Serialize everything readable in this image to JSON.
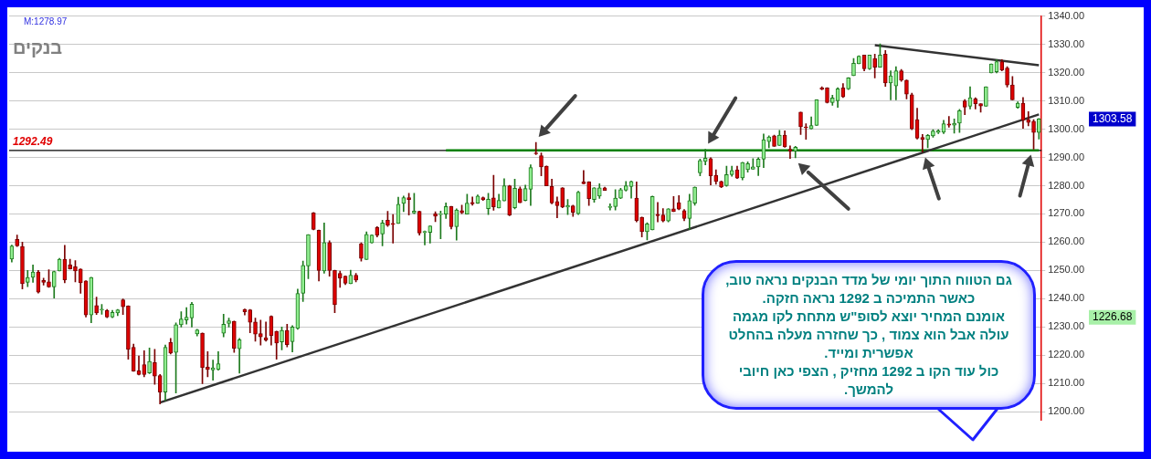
{
  "chart_data": {
    "type": "candlestick",
    "title": "בנקים",
    "categories": [
      null,
      null,
      null,
      null,
      null,
      null,
      null,
      null,
      null,
      null,
      null,
      null,
      null,
      null,
      null,
      null,
      null,
      null,
      null,
      null,
      null,
      null,
      null,
      null,
      null,
      null,
      null,
      null,
      null,
      null,
      null,
      null,
      null,
      null,
      null,
      null,
      null,
      null,
      null,
      null,
      null,
      null,
      null,
      null,
      null,
      null,
      null,
      null,
      null,
      null,
      null,
      null,
      null,
      null,
      null,
      null,
      null,
      null,
      null,
      null,
      null,
      null,
      null,
      null,
      null,
      null,
      null,
      null,
      null,
      null,
      null,
      null,
      null,
      null,
      null,
      null,
      null,
      null,
      null,
      null,
      null,
      null,
      null,
      null,
      null,
      null,
      null,
      null,
      null,
      null,
      null,
      null,
      null,
      null,
      null,
      null,
      null,
      null,
      null,
      null,
      null,
      null,
      null,
      null,
      null,
      null,
      null,
      null,
      null,
      null,
      null,
      null,
      null,
      null,
      null,
      null,
      null,
      null,
      null,
      null,
      null,
      null,
      null,
      null,
      null,
      null,
      null,
      null,
      null,
      null,
      null,
      null,
      null,
      null,
      null,
      null,
      null,
      null,
      null,
      null,
      null,
      null,
      null,
      null,
      null,
      null,
      null,
      null,
      null,
      null,
      null,
      null,
      null,
      null,
      null,
      null,
      null,
      null,
      null,
      null,
      null,
      null,
      null,
      null,
      null,
      null,
      null,
      null,
      null,
      null,
      null,
      null,
      null,
      null,
      null,
      null,
      null,
      null,
      null,
      null,
      null,
      null,
      null,
      null,
      null,
      null,
      null,
      null,
      null,
      null,
      null,
      null,
      null,
      null,
      null
    ],
    "ohlc": [
      [
        1254,
        1259,
        1253,
        1258.7
      ],
      [
        1261,
        1262.5,
        1258.5,
        1258.7
      ],
      [
        1258.5,
        1260,
        1243.5,
        1245.3
      ],
      [
        1245.8,
        1250,
        1244.3,
        1247.5
      ],
      [
        1247.6,
        1252,
        1245.8,
        1249.5
      ],
      [
        1249.5,
        1250,
        1242,
        1242.3
      ],
      [
        1246.5,
        1247.3,
        1244.8,
        1245.8
      ],
      [
        1246,
        1250.3,
        1244,
        1244.2
      ],
      [
        1244.2,
        1249.8,
        1240.2,
        1249.6
      ],
      [
        1249.8,
        1254.3,
        1249.8,
        1254
      ],
      [
        1254,
        1258.9,
        1245.6,
        1246.7
      ],
      [
        1252,
        1254,
        1250.5,
        1250.6
      ],
      [
        1251.3,
        1253.5,
        1246,
        1249.8
      ],
      [
        1250.5,
        1250.6,
        1241.9,
        1245.6
      ],
      [
        1246.3,
        1246.4,
        1233.5,
        1234.3
      ],
      [
        1234.3,
        1247.6,
        1231.5,
        1247.5
      ],
      [
        1237.6,
        1240.6,
        1234.4,
        1235
      ],
      [
        1236,
        1238,
        1234.5,
        1236.3
      ],
      [
        1235.8,
        1236.2,
        1233.3,
        1233.5
      ],
      [
        1233.5,
        1235.9,
        1233.3,
        1235.2
      ],
      [
        1235,
        1236.2,
        1234,
        1236.1
      ],
      [
        1239.6,
        1239.9,
        1234.4,
        1237.2
      ],
      [
        1237.4,
        1237.5,
        1218.6,
        1222.1
      ],
      [
        1222.8,
        1224,
        1214.3,
        1214.4
      ],
      [
        1214.5,
        1219.8,
        1213,
        1213.2
      ],
      [
        1216.7,
        1221.6,
        1212.4,
        1213.2
      ],
      [
        1213.8,
        1222.6,
        1213.5,
        1217.8
      ],
      [
        1217.4,
        1222.1,
        1209.7,
        1212.6
      ],
      [
        1212.8,
        1213.2,
        1202.8,
        1207
      ],
      [
        1207,
        1223.6,
        1204,
        1222.8
      ],
      [
        1224.5,
        1226,
        1220.5,
        1220.8
      ],
      [
        1221,
        1231.5,
        1206.7,
        1230.8
      ],
      [
        1230.8,
        1235.4,
        1230,
        1232.8
      ],
      [
        1232.5,
        1236.9,
        1231,
        1233.5
      ],
      [
        1233.2,
        1238.7,
        1230,
        1238.1
      ],
      [
        1227.6,
        1229.2,
        1226.8,
        1229
      ],
      [
        1227.8,
        1227.9,
        1210,
        1215.6
      ],
      [
        1215.8,
        1221.3,
        1212.4,
        1215
      ],
      [
        1214.8,
        1218.3,
        1211.2,
        1215.6
      ],
      [
        1215,
        1221.3,
        1214.7,
        1217
      ],
      [
        1227.8,
        1234.5,
        1226.5,
        1231
      ],
      [
        1231.3,
        1233.2,
        1230,
        1232.2
      ],
      [
        1232,
        1232.1,
        1221,
        1222.5
      ],
      [
        1222.3,
        1226,
        1213.7,
        1225.5
      ],
      [
        1236.2,
        1236.4,
        1234.3,
        1235.4
      ],
      [
        1236.1,
        1236.2,
        1228,
        1231.7
      ],
      [
        1231.8,
        1233.2,
        1225,
        1227.5
      ],
      [
        1227.7,
        1232.4,
        1223.6,
        1226.5
      ],
      [
        1226.2,
        1231.8,
        1225,
        1225.4
      ],
      [
        1233.8,
        1234,
        1223.6,
        1227
      ],
      [
        1228.5,
        1228.6,
        1218.6,
        1224.3
      ],
      [
        1224.7,
        1230,
        1221.9,
        1228.8
      ],
      [
        1228.8,
        1231,
        1223,
        1223.8
      ],
      [
        1224.8,
        1230.5,
        1221.2,
        1230
      ],
      [
        1229.5,
        1243.4,
        1229.2,
        1241.9
      ],
      [
        1241.9,
        1253.3,
        1239,
        1251.8
      ],
      [
        1251.6,
        1262.7,
        1247.1,
        1262.7
      ],
      [
        1270.4,
        1270.5,
        1264.4,
        1264.5
      ],
      [
        1264.2,
        1264.3,
        1246.3,
        1250
      ],
      [
        1249.8,
        1266.8,
        1249,
        1259.9
      ],
      [
        1259.9,
        1260.5,
        1248,
        1250
      ],
      [
        1250,
        1250.1,
        1235.1,
        1237.9
      ],
      [
        1249,
        1249.8,
        1244,
        1247.3
      ],
      [
        1248,
        1248.1,
        1245,
        1245.5
      ],
      [
        1245.3,
        1250.1,
        1245.3,
        1248.3
      ],
      [
        1248.3,
        1249,
        1246,
        1246.6
      ],
      [
        1259.5,
        1259.8,
        1253.3,
        1254.3
      ],
      [
        1253.9,
        1263.7,
        1253.9,
        1262.8
      ],
      [
        1259.8,
        1262.6,
        1259.7,
        1262.5
      ],
      [
        1265.2,
        1265.5,
        1261.9,
        1262.5
      ],
      [
        1262.9,
        1267.8,
        1258.7,
        1266.8
      ],
      [
        1267.8,
        1270.9,
        1265.6,
        1266
      ],
      [
        1266.5,
        1269.8,
        1259.7,
        1266.3
      ],
      [
        1266.6,
        1275.9,
        1266.6,
        1273.4
      ],
      [
        1273.7,
        1276.3,
        1270.8,
        1275.8
      ],
      [
        1275.8,
        1277.3,
        1269.6,
        1275.1
      ],
      [
        1270.3,
        1277.3,
        1270.1,
        1271
      ],
      [
        1270.9,
        1271,
        1262.5,
        1263.2
      ],
      [
        1263.5,
        1264,
        1259,
        1263.6
      ],
      [
        1263.5,
        1265.8,
        1259.7,
        1265.8
      ],
      [
        1270,
        1270.8,
        1267.3,
        1269.2
      ],
      [
        1269.8,
        1271,
        1261.2,
        1269.9
      ],
      [
        1269.9,
        1273.9,
        1268.4,
        1272.6
      ],
      [
        1272.6,
        1272.7,
        1264.7,
        1265.5
      ],
      [
        1265.5,
        1271.8,
        1260.7,
        1271.4
      ],
      [
        1271.2,
        1273.1,
        1270.1,
        1270.4
      ],
      [
        1269.9,
        1277,
        1269.9,
        1273.8
      ],
      [
        1274.1,
        1276,
        1273.1,
        1273.6
      ],
      [
        1273.8,
        1276.7,
        1273.7,
        1276.3
      ],
      [
        1275.8,
        1276,
        1274.8,
        1275
      ],
      [
        1271.9,
        1277.3,
        1269.8,
        1275.2
      ],
      [
        1275.7,
        1283.7,
        1271.3,
        1272.5
      ],
      [
        1272.1,
        1277,
        1272.1,
        1274.8
      ],
      [
        1274.6,
        1282.5,
        1274.6,
        1280
      ],
      [
        1280,
        1280.1,
        1269.4,
        1269.6
      ],
      [
        1272.2,
        1282.3,
        1271.8,
        1279.1
      ],
      [
        1278.9,
        1279.6,
        1274,
        1274
      ],
      [
        1274.8,
        1280.2,
        1274.6,
        1279
      ],
      [
        1278.7,
        1287.4,
        1273,
        1286.4
      ],
      [
        1291.5,
        1295.3,
        1291,
        1291.3
      ],
      [
        1290.6,
        1291.6,
        1283.5,
        1286.6
      ],
      [
        1286.9,
        1287,
        1279.9,
        1279.9
      ],
      [
        1279.7,
        1282.3,
        1273.6,
        1273.9
      ],
      [
        1274.4,
        1276,
        1268.6,
        1272.9
      ],
      [
        1279.2,
        1279.3,
        1272.2,
        1272.4
      ],
      [
        1272.4,
        1275.1,
        1269.8,
        1273
      ],
      [
        1272.9,
        1273.1,
        1269.1,
        1270.6
      ],
      [
        1270.1,
        1278,
        1269.8,
        1277.7
      ],
      [
        1281.3,
        1285.4,
        1280.7,
        1280.7
      ],
      [
        1281.3,
        1281.4,
        1273,
        1275.4
      ],
      [
        1275.1,
        1279.3,
        1274.1,
        1279.2
      ],
      [
        1276.3,
        1280.7,
        1275.5,
        1279.2
      ],
      [
        1279.2,
        1279.5,
        1278.3,
        1278.3
      ],
      [
        1272.3,
        1273.6,
        1271.4,
        1272.4
      ],
      [
        1272.6,
        1278.6,
        1271.4,
        1275.6
      ],
      [
        1275.6,
        1279.1,
        1275.4,
        1278.6
      ],
      [
        1278.4,
        1281.5,
        1278.1,
        1280
      ],
      [
        1279.7,
        1281.7,
        1275.6,
        1281.5
      ],
      [
        1275.6,
        1281.3,
        1267.2,
        1267.7
      ],
      [
        1268.8,
        1268.9,
        1261.9,
        1263.7
      ],
      [
        1263.7,
        1266.9,
        1260.8,
        1266.5
      ],
      [
        1264.4,
        1276.3,
        1264.4,
        1276.2
      ],
      [
        1269.9,
        1274.1,
        1267.2,
        1269.4
      ],
      [
        1269.6,
        1271.9,
        1267.2,
        1267.5
      ],
      [
        1267.5,
        1271.9,
        1267.2,
        1271.8
      ],
      [
        1271.8,
        1276.2,
        1270.8,
        1270.8
      ],
      [
        1274,
        1276.5,
        1271.5,
        1271.7
      ],
      [
        1271.2,
        1271.6,
        1267.6,
        1268.4
      ],
      [
        1268.4,
        1277,
        1264.5,
        1274.7
      ],
      [
        1273.8,
        1279.6,
        1273.1,
        1279.5
      ],
      [
        1284.5,
        1289.4,
        1283.5,
        1288.9
      ],
      [
        1288.6,
        1292.9,
        1287.4,
        1289.7
      ],
      [
        1289.6,
        1289.9,
        1280.3,
        1283.5
      ],
      [
        1283.7,
        1285.6,
        1280.5,
        1281.5
      ],
      [
        1281.5,
        1281.7,
        1279.3,
        1279.5
      ],
      [
        1280,
        1286.9,
        1279.8,
        1283.9
      ],
      [
        1283.9,
        1286.9,
        1283.3,
        1285.4
      ],
      [
        1285.6,
        1286.9,
        1282.5,
        1282.7
      ],
      [
        1282.8,
        1288.3,
        1282,
        1288.2
      ],
      [
        1285.7,
        1288.4,
        1284.8,
        1287.8
      ],
      [
        1285.8,
        1289.6,
        1285.8,
        1286.7
      ],
      [
        1286.6,
        1289.9,
        1283.6,
        1289.4
      ],
      [
        1289.4,
        1298.3,
        1286.4,
        1296.3
      ],
      [
        1295.6,
        1297.6,
        1293.4,
        1297.2
      ],
      [
        1297.6,
        1297.9,
        1293.9,
        1293.9
      ],
      [
        1294.2,
        1299.6,
        1294.2,
        1297.9
      ],
      [
        1297.9,
        1299.4,
        1293.6,
        1293.7
      ],
      [
        1292.9,
        1294.1,
        1289.6,
        1292.2
      ],
      [
        1292.2,
        1293.9,
        1289.9,
        1293.6
      ],
      [
        1306,
        1306,
        1298.1,
        1300.8
      ],
      [
        1300.8,
        1301.9,
        1296.4,
        1300.5
      ],
      [
        1300.1,
        1304.3,
        1300,
        1301.3
      ],
      [
        1301.3,
        1310.4,
        1301.3,
        1310.4
      ],
      [
        1314.6,
        1315,
        1313.9,
        1314.1
      ],
      [
        1314.6,
        1314.7,
        1309.2,
        1309.4
      ],
      [
        1309.4,
        1312,
        1308.4,
        1311
      ],
      [
        1310,
        1314.7,
        1307.7,
        1314.3
      ],
      [
        1314.6,
        1316.1,
        1311.2,
        1311.4
      ],
      [
        1314.2,
        1318.2,
        1314,
        1318.1
      ],
      [
        1318.9,
        1325,
        1318.9,
        1323.3
      ],
      [
        1323.1,
        1326,
        1323.1,
        1325.8
      ],
      [
        1326.2,
        1326.2,
        1320.6,
        1321.3
      ],
      [
        1321.3,
        1326.2,
        1321.1,
        1326.2
      ],
      [
        1325,
        1326.5,
        1318.1,
        1321.9
      ],
      [
        1321.9,
        1330.2,
        1321.9,
        1326.2
      ],
      [
        1326.5,
        1327.8,
        1315.1,
        1316.3
      ],
      [
        1316.3,
        1320.6,
        1310.4,
        1318.9
      ],
      [
        1315.3,
        1322.1,
        1310.4,
        1320.6
      ],
      [
        1320.6,
        1321.1,
        1316.9,
        1317.3
      ],
      [
        1317.3,
        1317.4,
        1310.7,
        1312.4
      ],
      [
        1312.2,
        1312.7,
        1299.8,
        1300.1
      ],
      [
        1303.4,
        1307.4,
        1296.5,
        1296.8
      ],
      [
        1297.1,
        1298.1,
        1291.9,
        1296.3
      ],
      [
        1296.3,
        1298.1,
        1293.4,
        1297.8
      ],
      [
        1297.6,
        1299.8,
        1297.1,
        1299.3
      ],
      [
        1298.8,
        1299.8,
        1298.4,
        1299.4
      ],
      [
        1298.9,
        1303.1,
        1298.4,
        1301.9
      ],
      [
        1301.8,
        1304.5,
        1300.7,
        1301.4
      ],
      [
        1301.4,
        1303.6,
        1298.6,
        1302.1
      ],
      [
        1302.1,
        1307,
        1298.8,
        1306.5
      ],
      [
        1310,
        1310.5,
        1305.1,
        1307.8
      ],
      [
        1308.1,
        1315,
        1307.1,
        1311.1
      ],
      [
        1310.7,
        1311.1,
        1307.1,
        1309
      ],
      [
        1309,
        1309,
        1306,
        1308.2
      ],
      [
        1308.1,
        1315,
        1308.1,
        1315
      ],
      [
        1319.9,
        1323.1,
        1319.9,
        1323.1
      ],
      [
        1320.3,
        1324.6,
        1319.9,
        1323.9
      ],
      [
        1323.9,
        1324.6,
        1320.6,
        1320.9
      ],
      [
        1321.6,
        1322.1,
        1314.9,
        1315.6
      ],
      [
        1315.6,
        1318.6,
        1310.4,
        1310.4
      ],
      [
        1307.7,
        1309.7,
        1307.4,
        1309.2
      ],
      [
        1309.2,
        1311.2,
        1300.3,
        1303.2
      ],
      [
        1303.4,
        1306.2,
        1301.2,
        1302.4
      ],
      [
        1302.8,
        1303.4,
        1292.9,
        1298.8
      ],
      [
        1298.8,
        1303.8,
        1296.5,
        1303.58
      ]
    ],
    "series": [
      {
        "type": "line",
        "color": "#333333",
        "values": [
          null,
          null,
          null,
          null,
          null,
          null,
          null,
          null,
          null,
          null,
          null,
          null,
          null,
          null,
          null,
          null,
          null,
          null,
          null,
          null,
          null,
          null,
          null,
          null,
          null,
          null,
          null,
          null,
          1203.3,
          null,
          null,
          null,
          null,
          null,
          null,
          null,
          null,
          null,
          null,
          null,
          null,
          null,
          null,
          null,
          null,
          null,
          null,
          null,
          null,
          null,
          null,
          null,
          null,
          null,
          null,
          null,
          null,
          null,
          null,
          null,
          null,
          null,
          null,
          null,
          null,
          null,
          null,
          null,
          null,
          null,
          null,
          null,
          null,
          null,
          null,
          null,
          null,
          null,
          null,
          null,
          null,
          null,
          null,
          null,
          null,
          null,
          null,
          null,
          null,
          null,
          null,
          null,
          null,
          null,
          null,
          null,
          null,
          null,
          null,
          null,
          null,
          null,
          null,
          null,
          null,
          null,
          null,
          null,
          null,
          null,
          null,
          null,
          null,
          null,
          null,
          null,
          null,
          null,
          null,
          null,
          null,
          null,
          null,
          null,
          null,
          null,
          null,
          null,
          null,
          null,
          null,
          null,
          null,
          null,
          null,
          null,
          null,
          null,
          null,
          null,
          null,
          null,
          null,
          null,
          null,
          null,
          null,
          null,
          null,
          null,
          null,
          null,
          null,
          null,
          null,
          null,
          null,
          null,
          null,
          null,
          null,
          null,
          null,
          null,
          null,
          null,
          null,
          null,
          null,
          null,
          null,
          null,
          null,
          null,
          null,
          null,
          null,
          null,
          null,
          null,
          null,
          null,
          null,
          null,
          null,
          null,
          null,
          null,
          null,
          null,
          null,
          null,
          null,
          null,
          1305.2
        ]
      },
      {
        "type": "line",
        "color": "#333333",
        "values": [
          null,
          null,
          null,
          null,
          null,
          null,
          null,
          null,
          null,
          null,
          null,
          null,
          null,
          null,
          null,
          null,
          null,
          null,
          null,
          null,
          null,
          null,
          null,
          null,
          null,
          null,
          null,
          null,
          null,
          null,
          null,
          null,
          null,
          null,
          null,
          null,
          null,
          null,
          null,
          null,
          null,
          null,
          null,
          null,
          null,
          null,
          null,
          null,
          null,
          null,
          null,
          null,
          null,
          null,
          null,
          null,
          null,
          null,
          null,
          null,
          null,
          null,
          null,
          null,
          null,
          null,
          null,
          null,
          null,
          null,
          null,
          null,
          null,
          null,
          null,
          null,
          null,
          null,
          null,
          null,
          null,
          null,
          null,
          null,
          null,
          null,
          null,
          null,
          null,
          null,
          null,
          null,
          null,
          null,
          null,
          null,
          null,
          null,
          null,
          null,
          null,
          null,
          null,
          null,
          null,
          null,
          null,
          null,
          null,
          null,
          null,
          null,
          null,
          null,
          null,
          null,
          null,
          null,
          null,
          null,
          null,
          null,
          null,
          null,
          null,
          null,
          null,
          null,
          null,
          null,
          null,
          null,
          null,
          null,
          null,
          null,
          null,
          null,
          null,
          null,
          null,
          null,
          null,
          null,
          null,
          null,
          null,
          null,
          null,
          null,
          null,
          null,
          null,
          null,
          null,
          null,
          null,
          null,
          null,
          null,
          null,
          null,
          null,
          1329.7,
          null,
          null,
          null,
          null,
          null,
          null,
          null,
          null,
          null,
          null,
          null,
          null,
          null,
          null,
          null,
          null,
          null,
          null,
          null,
          null,
          null,
          null,
          null,
          null,
          null,
          null,
          null,
          null,
          null,
          null,
          1322.6
        ]
      },
      {
        "type": "line",
        "color": "#008000",
        "values": [
          null,
          null,
          null,
          null,
          null,
          null,
          null,
          null,
          null,
          null,
          null,
          null,
          null,
          null,
          null,
          null,
          null,
          null,
          null,
          null,
          null,
          null,
          null,
          null,
          null,
          null,
          null,
          null,
          null,
          null,
          null,
          null,
          null,
          null,
          null,
          null,
          null,
          null,
          null,
          null,
          null,
          null,
          null,
          null,
          null,
          null,
          null,
          null,
          null,
          null,
          null,
          null,
          null,
          null,
          null,
          null,
          null,
          null,
          null,
          null,
          null,
          null,
          null,
          null,
          null,
          null,
          null,
          null,
          null,
          null,
          null,
          null,
          null,
          null,
          null,
          null,
          null,
          null,
          null,
          null,
          null,
          null,
          1292.5,
          null,
          null,
          null,
          null,
          null,
          null,
          null,
          null,
          null,
          null,
          null,
          null,
          null,
          null,
          null,
          null,
          null,
          null,
          null,
          null,
          null,
          null,
          null,
          null,
          null,
          null,
          null,
          null,
          null,
          null,
          null,
          null,
          null,
          null,
          null,
          null,
          null,
          null,
          null,
          null,
          null,
          null,
          null,
          null,
          null,
          null,
          null,
          null,
          null,
          null,
          null,
          null,
          null,
          null,
          null,
          null,
          null,
          null,
          null,
          null,
          null,
          null,
          null,
          null,
          null,
          null,
          null,
          null,
          null,
          null,
          null,
          null,
          null,
          null,
          null,
          null,
          null,
          null,
          null,
          null,
          null,
          null,
          null,
          null,
          null,
          null,
          null,
          null,
          null,
          null,
          null,
          null,
          null,
          null,
          null,
          null,
          null,
          null,
          null,
          null,
          null,
          null,
          null,
          null,
          null,
          null,
          null,
          null,
          null,
          null,
          null,
          1292.5
        ]
      }
    ],
    "ylim": [
      1197,
      1340
    ],
    "yticks": [
      {
        "value": 1200,
        "label": "1200.00"
      },
      {
        "value": 1210,
        "label": "1210.00"
      },
      {
        "value": 1220,
        "label": "1220.00"
      },
      {
        "value": 1230,
        "label": "1230.00"
      },
      {
        "value": 1240,
        "label": "1240.00"
      },
      {
        "value": 1250,
        "label": "1250.00"
      },
      {
        "value": 1260,
        "label": "1260.00"
      },
      {
        "value": 1270,
        "label": "1270.00"
      },
      {
        "value": 1280,
        "label": "1280.00"
      },
      {
        "value": 1290,
        "label": "1290.00"
      },
      {
        "value": 1300,
        "label": "1300.00"
      },
      {
        "value": 1310,
        "label": "1310.00"
      },
      {
        "value": 1320,
        "label": "1320.00"
      },
      {
        "value": 1330,
        "label": "1330.00"
      },
      {
        "value": 1340,
        "label": "1340.00"
      }
    ],
    "grid": "y",
    "ref_lines": [
      {
        "axis": "y",
        "value": 1292.49,
        "label": "1292.49",
        "color": "#000000"
      }
    ],
    "annotations": [
      "M:1278.97",
      "1303.58",
      "1226.68",
      "גם הטווח התוך יומי של מדד הבנקים נראה טוב,\nכאשר התמיכה ב 1292 נראה חזקה.\nאומנם המחיר יוצא לסופ\"ש מתחת לקו מגמה\nעולה אבל הוא צמוד , כך שחזרה מעלה בהחלט\nאפשרית ומייד.\nכול עוד הקו ב 1292 מחזיק , הצפי כאן חיובי\nלהמשך."
    ]
  }
}
